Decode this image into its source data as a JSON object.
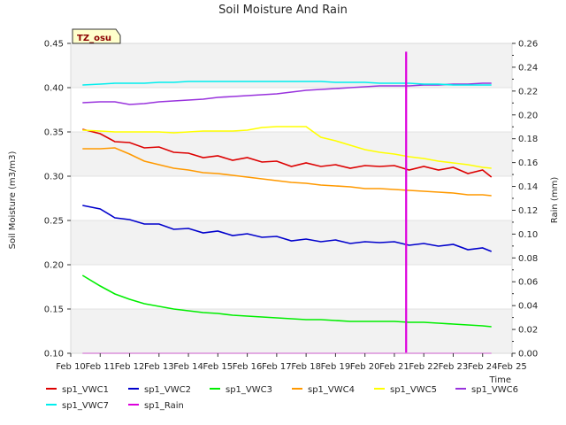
{
  "chart_data": {
    "type": "line",
    "title": "Soil Moisture And Rain",
    "badge": "TZ_osu",
    "xlabel": "Time",
    "ylabel": "Soil Moisture (m3/m3)",
    "y2label": "Rain (mm)",
    "xlim": [
      10,
      25
    ],
    "ylim": [
      0.1,
      0.45
    ],
    "y2lim": [
      0.0,
      0.26
    ],
    "x_ticks": [
      10,
      11,
      12,
      13,
      14,
      15,
      16,
      17,
      18,
      19,
      20,
      21,
      22,
      23,
      24,
      25
    ],
    "x_tick_labels": [
      "Feb 10",
      "Feb 11",
      "Feb 12",
      "Feb 13",
      "Feb 14",
      "Feb 15",
      "Feb 16",
      "Feb 17",
      "Feb 18",
      "Feb 19",
      "Feb 20",
      "Feb 21",
      "Feb 22",
      "Feb 23",
      "Feb 24",
      "Feb 25"
    ],
    "y_ticks": [
      0.1,
      0.15,
      0.2,
      0.25,
      0.3,
      0.35,
      0.4,
      0.45
    ],
    "y_tick_labels": [
      "0.10",
      "0.15",
      "0.20",
      "0.25",
      "0.30",
      "0.35",
      "0.40",
      "0.45"
    ],
    "y2_ticks": [
      0.0,
      0.02,
      0.04,
      0.06,
      0.08,
      0.1,
      0.12,
      0.14,
      0.16,
      0.18,
      0.2,
      0.22,
      0.24,
      0.26
    ],
    "y2_tick_labels": [
      "0.00",
      "0.02",
      "0.04",
      "0.06",
      "0.08",
      "0.10",
      "0.12",
      "0.14",
      "0.16",
      "0.18",
      "0.20",
      "0.22",
      "0.24",
      "0.26"
    ],
    "bands": [
      [
        0.1,
        0.15
      ],
      [
        0.2,
        0.25
      ],
      [
        0.3,
        0.35
      ],
      [
        0.4,
        0.45
      ]
    ],
    "x": [
      10.4,
      11,
      11.5,
      12,
      12.5,
      13,
      13.5,
      14,
      14.5,
      15,
      15.5,
      16,
      16.5,
      17,
      17.5,
      18,
      18.5,
      19,
      19.5,
      20,
      20.5,
      21,
      21.5,
      22,
      22.5,
      23,
      23.5,
      24,
      24.3
    ],
    "series": [
      {
        "name": "sp1_VWC1",
        "color": "#dd0000",
        "axis": "left",
        "values": [
          0.353,
          0.348,
          0.339,
          0.338,
          0.332,
          0.333,
          0.327,
          0.326,
          0.321,
          0.323,
          0.318,
          0.321,
          0.316,
          0.317,
          0.311,
          0.315,
          0.311,
          0.313,
          0.309,
          0.312,
          0.311,
          0.312,
          0.307,
          0.311,
          0.307,
          0.31,
          0.303,
          0.307,
          0.299
        ]
      },
      {
        "name": "sp1_VWC2",
        "color": "#0000cc",
        "axis": "left",
        "values": [
          0.267,
          0.263,
          0.253,
          0.251,
          0.246,
          0.246,
          0.24,
          0.241,
          0.236,
          0.238,
          0.233,
          0.235,
          0.231,
          0.232,
          0.227,
          0.229,
          0.226,
          0.228,
          0.224,
          0.226,
          0.225,
          0.226,
          0.222,
          0.224,
          0.221,
          0.223,
          0.217,
          0.219,
          0.215
        ]
      },
      {
        "name": "sp1_VWC3",
        "color": "#00ee00",
        "axis": "left",
        "values": [
          0.188,
          0.176,
          0.167,
          0.161,
          0.156,
          0.153,
          0.15,
          0.148,
          0.146,
          0.145,
          0.143,
          0.142,
          0.141,
          0.14,
          0.139,
          0.138,
          0.138,
          0.137,
          0.136,
          0.136,
          0.136,
          0.136,
          0.135,
          0.135,
          0.134,
          0.133,
          0.132,
          0.131,
          0.13
        ]
      },
      {
        "name": "sp1_VWC4",
        "color": "#ff9900",
        "axis": "left",
        "values": [
          0.331,
          0.331,
          0.332,
          0.325,
          0.317,
          0.313,
          0.309,
          0.307,
          0.304,
          0.303,
          0.301,
          0.299,
          0.297,
          0.295,
          0.293,
          0.292,
          0.29,
          0.289,
          0.288,
          0.286,
          0.286,
          0.285,
          0.284,
          0.283,
          0.282,
          0.281,
          0.279,
          0.279,
          0.278
        ]
      },
      {
        "name": "sp1_VWC5",
        "color": "#ffff00",
        "axis": "left",
        "values": [
          0.352,
          0.351,
          0.35,
          0.35,
          0.35,
          0.35,
          0.349,
          0.35,
          0.351,
          0.351,
          0.351,
          0.352,
          0.355,
          0.356,
          0.356,
          0.356,
          0.344,
          0.34,
          0.335,
          0.33,
          0.327,
          0.325,
          0.322,
          0.32,
          0.317,
          0.315,
          0.313,
          0.31,
          0.309
        ]
      },
      {
        "name": "sp1_VWC6",
        "color": "#9933dd",
        "axis": "left",
        "values": [
          0.383,
          0.384,
          0.384,
          0.381,
          0.382,
          0.384,
          0.385,
          0.386,
          0.387,
          0.389,
          0.39,
          0.391,
          0.392,
          0.393,
          0.395,
          0.397,
          0.398,
          0.399,
          0.4,
          0.401,
          0.402,
          0.402,
          0.402,
          0.403,
          0.403,
          0.404,
          0.404,
          0.405,
          0.405
        ]
      },
      {
        "name": "sp1_VWC7",
        "color": "#00eeee",
        "axis": "left",
        "values": [
          0.403,
          0.404,
          0.405,
          0.405,
          0.405,
          0.406,
          0.406,
          0.407,
          0.407,
          0.407,
          0.407,
          0.407,
          0.407,
          0.407,
          0.407,
          0.407,
          0.407,
          0.406,
          0.406,
          0.406,
          0.405,
          0.405,
          0.405,
          0.404,
          0.404,
          0.403,
          0.403,
          0.403,
          0.403
        ]
      },
      {
        "name": "sp1_Rain",
        "color": "#dd00dd",
        "axis": "right",
        "values": [
          0,
          0,
          0,
          0,
          0,
          0,
          0,
          0,
          0,
          0,
          0,
          0,
          0,
          0,
          0,
          0,
          0,
          0,
          0,
          0,
          0,
          0,
          0,
          0,
          0,
          0,
          0,
          0,
          0
        ],
        "spike": {
          "x": 21.4,
          "value": 0.253
        }
      }
    ],
    "legend_position": "bottom"
  }
}
